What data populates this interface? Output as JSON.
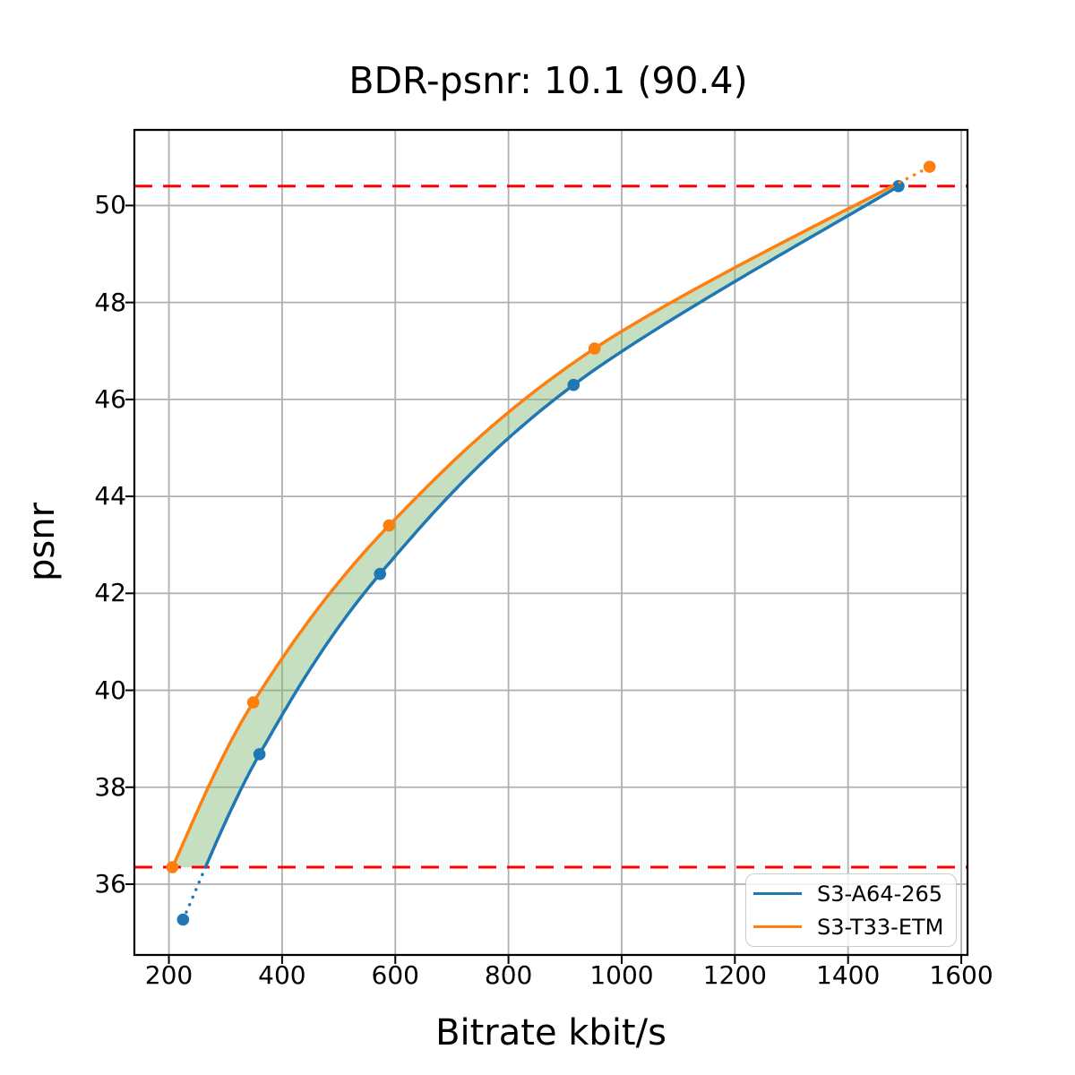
{
  "chart_data": {
    "type": "line",
    "title": "BDR-psnr: 10.1 (90.4)",
    "xlabel": "Bitrate kbit/s",
    "ylabel": "psnr",
    "xlim": [
      139,
      1611
    ],
    "ylim": [
      34.54,
      51.56
    ],
    "x_ticks": [
      200,
      400,
      600,
      800,
      1000,
      1200,
      1400,
      1600
    ],
    "y_ticks": [
      36,
      38,
      40,
      42,
      44,
      46,
      48,
      50
    ],
    "grid": true,
    "grid_color": "#b0b0b0",
    "legend_position": "lower right",
    "series": [
      {
        "name": "S3-A64-265",
        "color": "#1f77b4",
        "x": [
          225,
          360,
          573,
          915,
          1489
        ],
        "y": [
          35.27,
          38.68,
          42.4,
          46.3,
          50.4
        ]
      },
      {
        "name": "S3-T33-ETM",
        "color": "#ff7f0e",
        "x": [
          206,
          349,
          589,
          952,
          1544
        ],
        "y": [
          36.35,
          39.75,
          43.4,
          47.05,
          50.8
        ]
      }
    ],
    "hlines": {
      "values": [
        36.35,
        50.4
      ],
      "color": "#ff0000",
      "style": "dashed"
    },
    "overlap_fill_color": "rgba(120,178,108,0.42)",
    "clip_curves_to_hlines": true
  }
}
